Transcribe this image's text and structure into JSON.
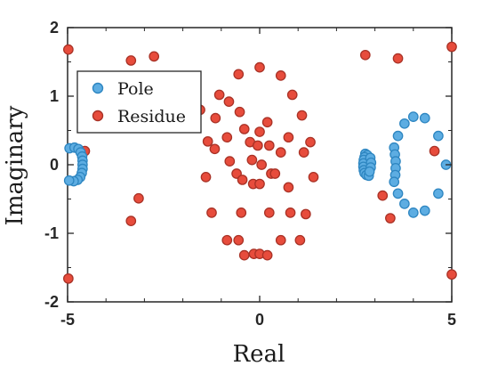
{
  "chart_data": {
    "type": "scatter",
    "xlabel": "Real",
    "ylabel": "Imaginary",
    "xlim": [
      -5,
      5
    ],
    "ylim": [
      -2,
      2
    ],
    "xticks": [
      "-5",
      "0",
      "5"
    ],
    "yticks": [
      "-2",
      "-1",
      "0",
      "1",
      "2"
    ],
    "grid": false,
    "legend_position": "upper-left",
    "series": [
      {
        "name": "Pole",
        "color": "#5dade2",
        "edge": "#2e86c1",
        "points": [
          [
            -4.95,
            0.24
          ],
          [
            -4.82,
            0.25
          ],
          [
            -4.72,
            0.23
          ],
          [
            -4.66,
            0.18
          ],
          [
            -4.62,
            0.12
          ],
          [
            -4.61,
            0.06
          ],
          [
            -4.61,
            0.0
          ],
          [
            -4.61,
            -0.06
          ],
          [
            -4.63,
            -0.12
          ],
          [
            -4.67,
            -0.18
          ],
          [
            -4.74,
            -0.22
          ],
          [
            -4.84,
            -0.24
          ],
          [
            -4.96,
            -0.23
          ],
          [
            2.75,
            0.16
          ],
          [
            2.8,
            0.14
          ],
          [
            2.73,
            0.11
          ],
          [
            2.71,
            0.07
          ],
          [
            2.7,
            0.02
          ],
          [
            2.7,
            -0.03
          ],
          [
            2.71,
            -0.08
          ],
          [
            2.73,
            -0.12
          ],
          [
            2.78,
            -0.15
          ],
          [
            2.84,
            -0.16
          ],
          [
            2.88,
            0.1
          ],
          [
            2.9,
            0.03
          ],
          [
            2.89,
            -0.04
          ],
          [
            2.86,
            -0.1
          ],
          [
            3.5,
            0.25
          ],
          [
            3.52,
            0.15
          ],
          [
            3.54,
            0.05
          ],
          [
            3.54,
            -0.05
          ],
          [
            3.53,
            -0.15
          ],
          [
            3.5,
            -0.25
          ],
          [
            3.6,
            0.42
          ],
          [
            3.6,
            -0.42
          ],
          [
            3.77,
            0.6
          ],
          [
            3.77,
            -0.57
          ],
          [
            4.0,
            0.7
          ],
          [
            4.0,
            -0.7
          ],
          [
            4.3,
            0.68
          ],
          [
            4.3,
            -0.67
          ],
          [
            4.65,
            0.42
          ],
          [
            4.65,
            -0.42
          ],
          [
            4.85,
            0.0
          ]
        ]
      },
      {
        "name": "Residue",
        "color": "#e74c3c",
        "edge": "#a93226",
        "points": [
          [
            -4.98,
            1.68
          ],
          [
            -4.98,
            -1.66
          ],
          [
            -4.55,
            0.2
          ],
          [
            -3.35,
            1.52
          ],
          [
            -2.75,
            1.58
          ],
          [
            -3.15,
            -0.49
          ],
          [
            -3.35,
            -0.82
          ],
          [
            -1.55,
            0.8
          ],
          [
            -1.35,
            0.34
          ],
          [
            -1.4,
            -0.18
          ],
          [
            -1.25,
            -0.7
          ],
          [
            -1.17,
            0.23
          ],
          [
            -1.15,
            0.68
          ],
          [
            -1.05,
            1.02
          ],
          [
            -0.8,
            0.92
          ],
          [
            -0.85,
            0.4
          ],
          [
            -0.85,
            -1.1
          ],
          [
            -0.78,
            0.05
          ],
          [
            -0.55,
            1.32
          ],
          [
            -0.52,
            0.77
          ],
          [
            -0.6,
            -0.13
          ],
          [
            -0.55,
            -1.1
          ],
          [
            -0.4,
            -1.32
          ],
          [
            -0.4,
            0.52
          ],
          [
            -0.45,
            -0.22
          ],
          [
            -0.48,
            -0.7
          ],
          [
            -0.25,
            0.33
          ],
          [
            -0.2,
            0.07
          ],
          [
            -0.17,
            -0.28
          ],
          [
            -0.15,
            -1.3
          ],
          [
            0.0,
            1.42
          ],
          [
            -0.05,
            0.28
          ],
          [
            0.0,
            0.48
          ],
          [
            0.05,
            0.0
          ],
          [
            0.0,
            -0.28
          ],
          [
            0.0,
            -1.3
          ],
          [
            0.2,
            -1.32
          ],
          [
            0.2,
            0.62
          ],
          [
            0.25,
            0.28
          ],
          [
            0.3,
            -0.13
          ],
          [
            0.4,
            -0.13
          ],
          [
            0.25,
            -0.7
          ],
          [
            0.55,
            1.3
          ],
          [
            0.55,
            0.18
          ],
          [
            0.55,
            -1.1
          ],
          [
            0.75,
            0.4
          ],
          [
            0.75,
            -0.33
          ],
          [
            0.8,
            -0.7
          ],
          [
            0.85,
            1.02
          ],
          [
            1.05,
            -1.1
          ],
          [
            1.1,
            0.72
          ],
          [
            1.15,
            0.18
          ],
          [
            1.2,
            -0.72
          ],
          [
            1.32,
            0.33
          ],
          [
            1.4,
            -0.18
          ],
          [
            2.75,
            1.6
          ],
          [
            3.6,
            1.55
          ],
          [
            3.2,
            -0.45
          ],
          [
            3.4,
            -0.78
          ],
          [
            4.55,
            0.2
          ],
          [
            5.0,
            1.72
          ],
          [
            5.0,
            -1.6
          ]
        ]
      }
    ]
  }
}
